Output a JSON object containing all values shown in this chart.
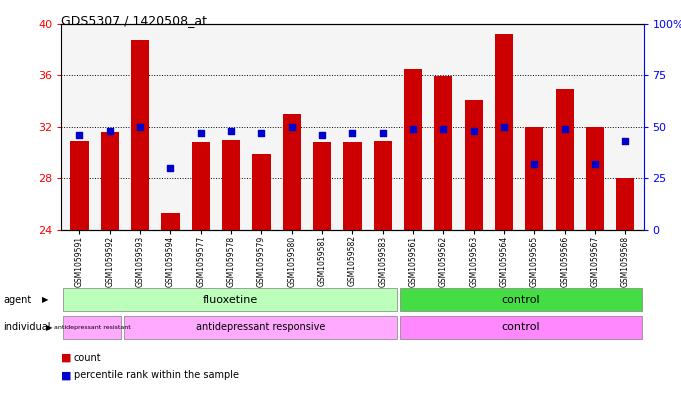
{
  "title": "GDS5307 / 1420508_at",
  "samples": [
    "GSM1059591",
    "GSM1059592",
    "GSM1059593",
    "GSM1059594",
    "GSM1059577",
    "GSM1059578",
    "GSM1059579",
    "GSM1059580",
    "GSM1059581",
    "GSM1059582",
    "GSM1059583",
    "GSM1059561",
    "GSM1059562",
    "GSM1059563",
    "GSM1059564",
    "GSM1059565",
    "GSM1059566",
    "GSM1059567",
    "GSM1059568"
  ],
  "count_values": [
    30.9,
    31.6,
    38.7,
    25.3,
    30.8,
    31.0,
    29.9,
    33.0,
    30.8,
    30.8,
    30.9,
    36.5,
    35.9,
    34.1,
    39.2,
    32.0,
    34.9,
    32.0,
    28.0
  ],
  "percentile_values": [
    46,
    48,
    50,
    30,
    47,
    48,
    47,
    50,
    46,
    47,
    47,
    49,
    49,
    48,
    50,
    32,
    49,
    32,
    43
  ],
  "baseline": 24,
  "ylim_left": [
    24,
    40
  ],
  "ylim_right": [
    0,
    100
  ],
  "yticks_left": [
    24,
    28,
    32,
    36,
    40
  ],
  "yticks_right": [
    0,
    25,
    50,
    75,
    100
  ],
  "bar_color": "#cc0000",
  "dot_color": "#0000cc",
  "bar_width": 0.6,
  "fluox_count": 11,
  "resist_count": 2,
  "resp_count": 9,
  "ctrl_count": 8,
  "agent_fluox_color": "#bbffbb",
  "agent_ctrl_color": "#44dd44",
  "indiv_resist_color": "#ffaaff",
  "indiv_resp_color": "#ffaaff",
  "indiv_ctrl_color": "#ff88ff",
  "legend_count_label": "count",
  "legend_pct_label": "percentile rank within the sample"
}
